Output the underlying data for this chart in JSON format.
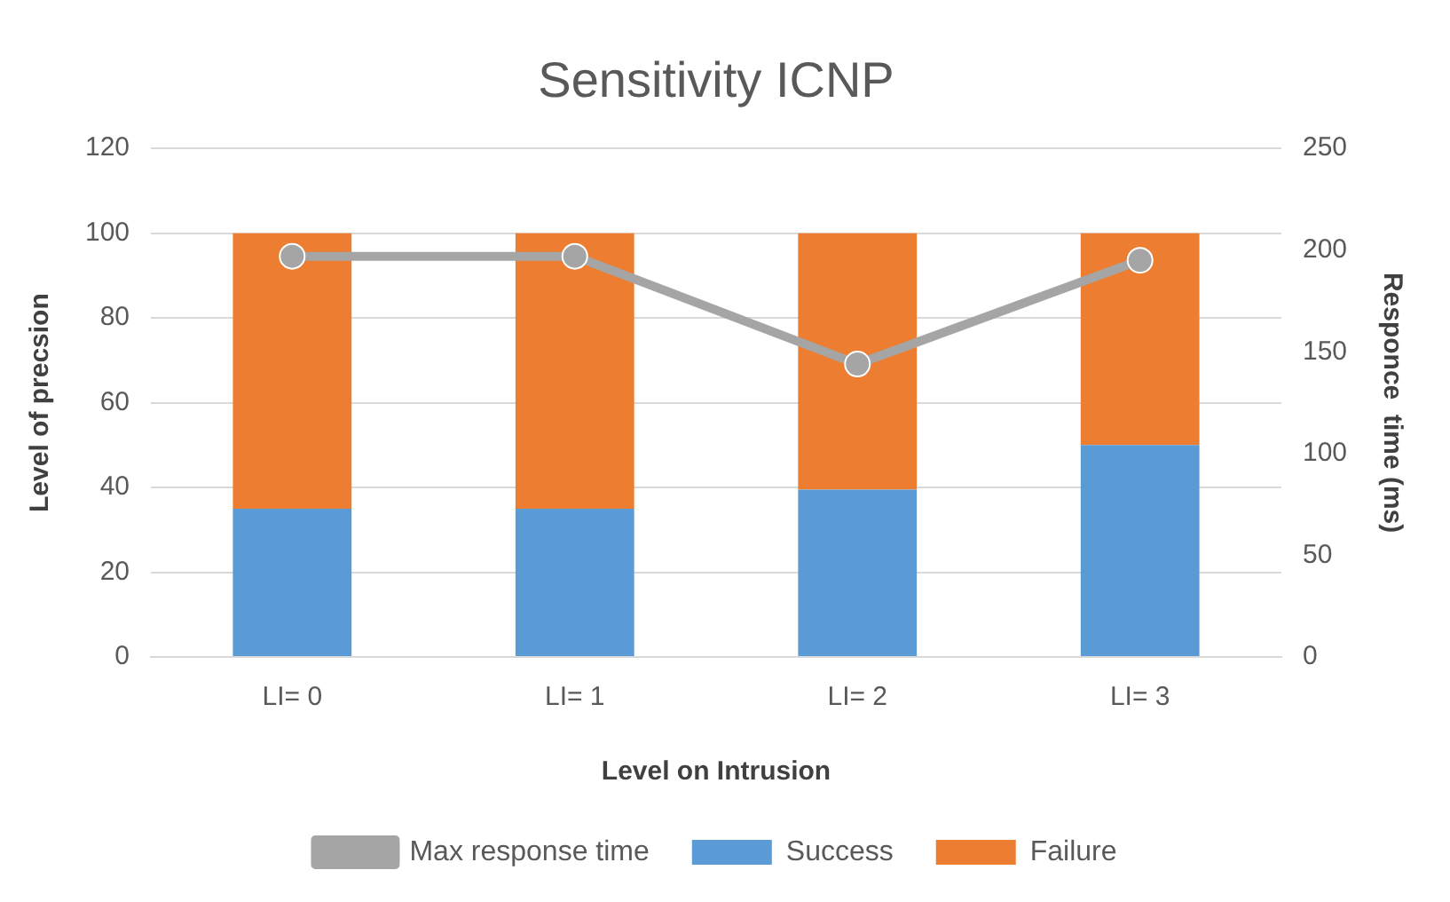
{
  "chart_data": {
    "type": "bar",
    "title": "Sensitivity ICNP",
    "xlabel": "Level on Intrusion",
    "ylabel": "Level of precsion",
    "y2label": "Responce  time (ms)",
    "categories": [
      "LI= 0",
      "LI= 1",
      "LI= 2",
      "LI= 3"
    ],
    "series": [
      {
        "name": "Success",
        "color": "#5b9bd5",
        "values": [
          35,
          35,
          39.5,
          50
        ]
      },
      {
        "name": "Failure",
        "color": "#ed7d31",
        "values": [
          65,
          65,
          60.5,
          50
        ]
      },
      {
        "name": "Max response time",
        "type": "line",
        "axis": "y2",
        "color": "#a5a5a5",
        "values": [
          197,
          197,
          144,
          195
        ]
      }
    ],
    "stacked": true,
    "ylim": [
      0,
      120
    ],
    "yticks": [
      0,
      20,
      40,
      60,
      80,
      100,
      120
    ],
    "y2lim": [
      0,
      250
    ],
    "y2ticks": [
      0,
      50,
      100,
      150,
      200,
      250
    ],
    "grid": "y",
    "legend": "bottom",
    "marker": "circle",
    "line_style": "solid"
  }
}
